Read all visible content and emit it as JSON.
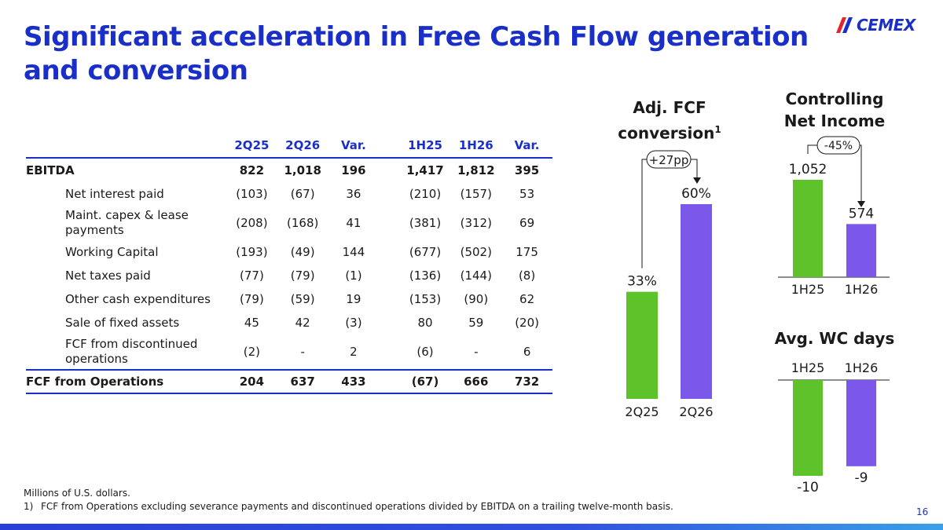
{
  "title": "Significant acceleration in Free Cash Flow generation and conversion",
  "logo": {
    "text": "CEMEX"
  },
  "table": {
    "headers": [
      "",
      "2Q25",
      "2Q26",
      "Var.",
      "1H25",
      "1H26",
      "Var."
    ],
    "rows": [
      {
        "label": "EBITDA",
        "values": [
          "822",
          "1,018",
          "196",
          "1,417",
          "1,812",
          "395"
        ]
      },
      {
        "label": "Net interest paid",
        "values": [
          "(103)",
          "(67)",
          "36",
          "(210)",
          "(157)",
          "53"
        ]
      },
      {
        "label": "Maint. capex & lease payments",
        "values": [
          "(208)",
          "(168)",
          "41",
          "(381)",
          "(312)",
          "69"
        ]
      },
      {
        "label": "Working Capital",
        "values": [
          "(193)",
          "(49)",
          "144",
          "(677)",
          "(502)",
          "175"
        ]
      },
      {
        "label": "Net taxes paid",
        "values": [
          "(77)",
          "(79)",
          "(1)",
          "(136)",
          "(144)",
          "(8)"
        ]
      },
      {
        "label": "Other cash expenditures",
        "values": [
          "(79)",
          "(59)",
          "19",
          "(153)",
          "(90)",
          "62"
        ]
      },
      {
        "label": "Sale of fixed assets",
        "values": [
          "45",
          "42",
          "(3)",
          "80",
          "59",
          "(20)"
        ]
      },
      {
        "label": "FCF from discontinued operations",
        "values": [
          "(2)",
          "-",
          "2",
          "(6)",
          "-",
          "6"
        ]
      },
      {
        "label": "FCF from Operations",
        "values": [
          "204",
          "637",
          "433",
          "(67)",
          "666",
          "732"
        ]
      }
    ]
  },
  "chart_titles": {
    "fcf_conversion": "Adj. FCF conversion",
    "fcf_conversion_footnote_mark": "1",
    "net_income": "Controlling Net Income",
    "wc_days": "Avg. WC days"
  },
  "chart_data": [
    {
      "type": "bar",
      "title": "Adj. FCF conversion",
      "categories": [
        "2Q25",
        "2Q26"
      ],
      "values": [
        33,
        60
      ],
      "labels": [
        "33%",
        "60%"
      ],
      "colors": [
        "#5ec22a",
        "#7b57ea"
      ],
      "annotation": "+27pp"
    },
    {
      "type": "bar",
      "title": "Controlling Net Income",
      "categories": [
        "1H25",
        "1H26"
      ],
      "values": [
        1052,
        574
      ],
      "labels": [
        "1,052",
        "574"
      ],
      "colors": [
        "#5ec22a",
        "#7b57ea"
      ],
      "annotation": "-45%"
    },
    {
      "type": "bar",
      "title": "Avg. WC days",
      "categories": [
        "1H25",
        "1H26"
      ],
      "values": [
        -10,
        -9
      ],
      "labels": [
        "-10",
        "-9"
      ],
      "colors": [
        "#5ec22a",
        "#7b57ea"
      ]
    }
  ],
  "footnotes": {
    "units": "Millions of U.S. dollars.",
    "note1_num": "1)",
    "note1": "FCF from Operations excluding severance payments and discontinued operations divided by EBITDA on a trailing twelve-month basis."
  },
  "page_number": "16",
  "colors": {
    "brand_blue": "#1a2fc8",
    "green": "#5ec22a",
    "purple": "#7b57ea"
  }
}
